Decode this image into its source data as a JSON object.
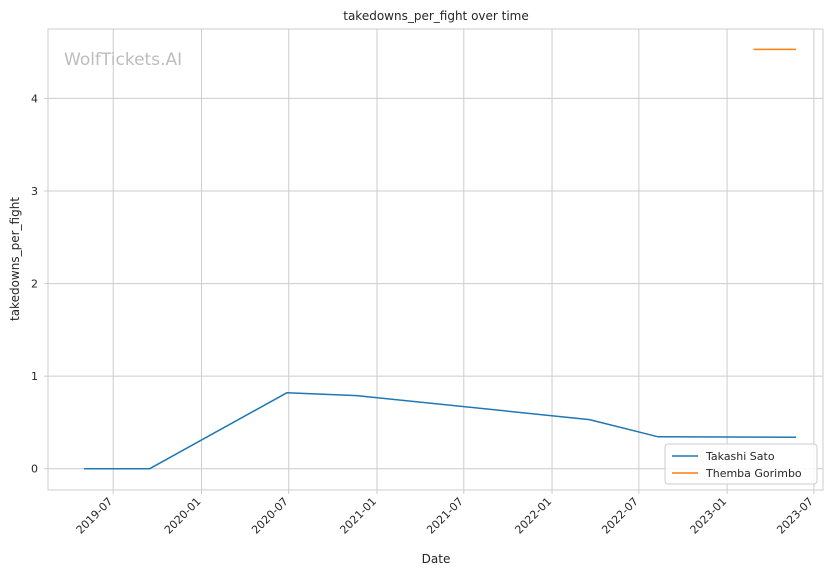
{
  "chart_data": {
    "type": "line",
    "title": "takedowns_per_fight over time",
    "xlabel": "Date",
    "ylabel": "takedowns_per_fight",
    "watermark": "WolfTickets.AI",
    "x_range": [
      "2019-02-15",
      "2023-07-20"
    ],
    "ylim": [
      -0.23,
      4.75
    ],
    "x_ticks": [
      "2019-07",
      "2020-01",
      "2020-07",
      "2021-01",
      "2021-07",
      "2022-01",
      "2022-07",
      "2023-01",
      "2023-07"
    ],
    "y_ticks": [
      0,
      1,
      2,
      3,
      4
    ],
    "grid": true,
    "legend_position": "lower-right",
    "series": [
      {
        "name": "Takashi Sato",
        "color": "#1f77b4",
        "points": [
          {
            "x": "2019-05-01",
            "y": 0.0
          },
          {
            "x": "2019-09-15",
            "y": 0.0
          },
          {
            "x": "2020-06-27",
            "y": 0.82
          },
          {
            "x": "2020-11-20",
            "y": 0.79
          },
          {
            "x": "2022-03-20",
            "y": 0.53
          },
          {
            "x": "2022-08-10",
            "y": 0.345
          },
          {
            "x": "2023-05-25",
            "y": 0.34
          }
        ]
      },
      {
        "name": "Themba Gorimbo",
        "color": "#ff7f0e",
        "points": [
          {
            "x": "2023-02-25",
            "y": 4.53
          },
          {
            "x": "2023-05-25",
            "y": 4.53
          }
        ]
      }
    ]
  }
}
